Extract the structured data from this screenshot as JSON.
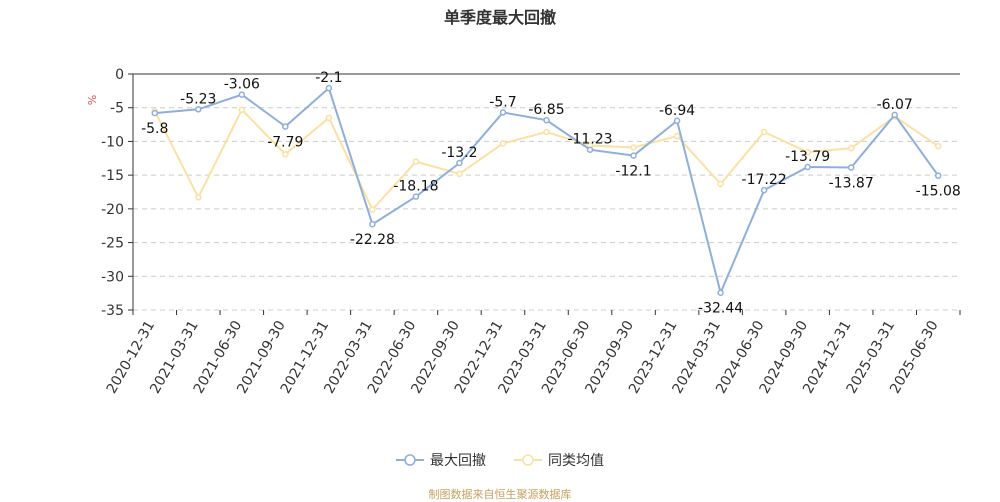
{
  "chart_data": {
    "type": "line",
    "title": "单季度最大回撤",
    "ylabel": "%",
    "ylim": [
      -35,
      0
    ],
    "yticks": [
      0,
      -5,
      -10,
      -15,
      -20,
      -25,
      -30,
      -35
    ],
    "grid": true,
    "legend_position": "bottom",
    "categories": [
      "2020-12-31",
      "2021-03-31",
      "2021-06-30",
      "2021-09-30",
      "2021-12-31",
      "2022-03-31",
      "2022-06-30",
      "2022-09-30",
      "2022-12-31",
      "2023-03-31",
      "2023-06-30",
      "2023-09-30",
      "2023-12-31",
      "2024-03-31",
      "2024-06-30",
      "2024-09-30",
      "2024-12-31",
      "2025-03-31",
      "2025-06-30"
    ],
    "series": [
      {
        "name": "最大回撤",
        "color": "#8eaedb",
        "labels": [
          "-5.8",
          "-5.23",
          "-3.06",
          "-7.79",
          "-2.1",
          "-22.28",
          "-18.18",
          "-13.2",
          "-5.7",
          "-6.85",
          "-11.23",
          "-12.1",
          "-6.94",
          "-32.44",
          "-17.22",
          "-13.79",
          "-13.87",
          "-6.07",
          "-15.08"
        ],
        "values": [
          -5.8,
          -5.23,
          -3.06,
          -7.79,
          -2.1,
          -22.28,
          -18.18,
          -13.2,
          -5.7,
          -6.85,
          -11.23,
          -12.1,
          -6.94,
          -32.44,
          -17.22,
          -13.79,
          -13.87,
          -6.07,
          -15.08
        ]
      },
      {
        "name": "同类均值",
        "color": "#fbe0a3",
        "values": [
          -5.5,
          -18.3,
          -5.3,
          -11.9,
          -6.5,
          -20.1,
          -13.0,
          -14.8,
          -10.3,
          -8.6,
          -10.6,
          -10.9,
          -9.2,
          -16.3,
          -8.6,
          -11.6,
          -11.0,
          -6.3,
          -10.7
        ]
      }
    ]
  },
  "source_note": "制图数据来自恒生聚源数据库"
}
